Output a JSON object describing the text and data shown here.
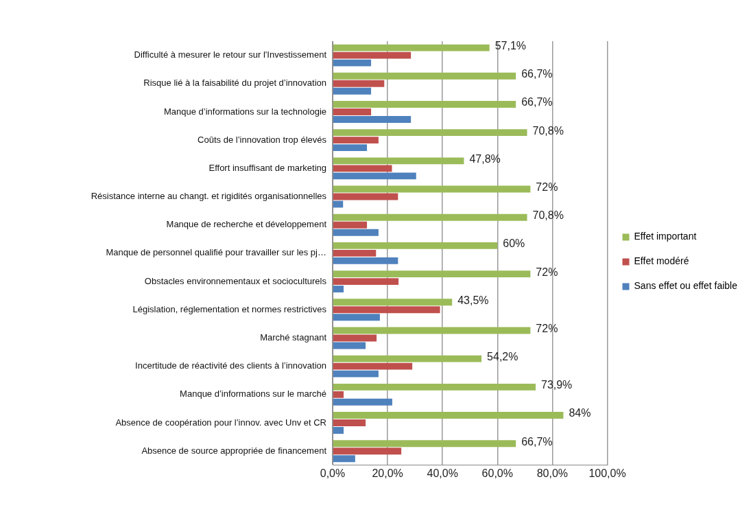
{
  "chart_data": {
    "type": "bar",
    "orientation": "horizontal",
    "categories": [
      "Difficulté à mesurer le retour sur l'Investissement",
      "Risque lié à la faisabilité du projet d’innovation",
      "Manque d’informations sur la technologie",
      "Coûts de l’innovation trop élevés",
      "Effort insuffisant de marketing",
      "Résistance interne au changt. et rigidités organisationnelles",
      "Manque de recherche et développement",
      "Manque de personnel qualifié pour travailler sur les pj…",
      "Obstacles environnementaux et socioculturels",
      "Législation, réglementation et normes restrictives",
      "Marché stagnant",
      "Incertitude de réactivité des clients à l’innovation",
      "Manque d’informations sur le marché",
      "Absence de coopération pour l’innov. avec Unv et CR",
      "Absence de source appropriée de financement"
    ],
    "series": [
      {
        "name": "Effet important",
        "color": "#9bbb59",
        "values": [
          57.1,
          66.7,
          66.7,
          70.8,
          47.8,
          72,
          70.8,
          60,
          72,
          43.5,
          72,
          54.2,
          73.9,
          84,
          66.7
        ],
        "value_labels": [
          "57,1%",
          "66,7%",
          "66,7%",
          "70,8%",
          "47,8%",
          "72%",
          "70,8%",
          "60%",
          "72%",
          "43,5%",
          "72%",
          "54,2%",
          "73,9%",
          "84%",
          "66,7%"
        ]
      },
      {
        "name": "Effet modéré",
        "color": "#c0504d",
        "values": [
          28.5,
          18.8,
          14,
          16.7,
          21.6,
          23.8,
          12.5,
          15.8,
          24,
          39.1,
          16,
          29,
          4,
          12,
          25
        ]
      },
      {
        "name": "Sans effet ou effet faible",
        "color": "#4f81bd",
        "values": [
          14,
          14,
          28.5,
          12.5,
          30.4,
          3.8,
          16.7,
          23.8,
          4,
          17.2,
          12,
          16.7,
          21.7,
          4,
          8.2
        ]
      }
    ],
    "xlim": [
      0,
      100
    ],
    "xticks": [
      {
        "value": 0,
        "label": "0,0%"
      },
      {
        "value": 20,
        "label": "20,0%"
      },
      {
        "value": 40,
        "label": "40,0%"
      },
      {
        "value": 60,
        "label": "60,0%"
      },
      {
        "value": 80,
        "label": "80,0%"
      },
      {
        "value": 100,
        "label": "100,0%"
      }
    ],
    "grid": "x",
    "legend": "right"
  }
}
